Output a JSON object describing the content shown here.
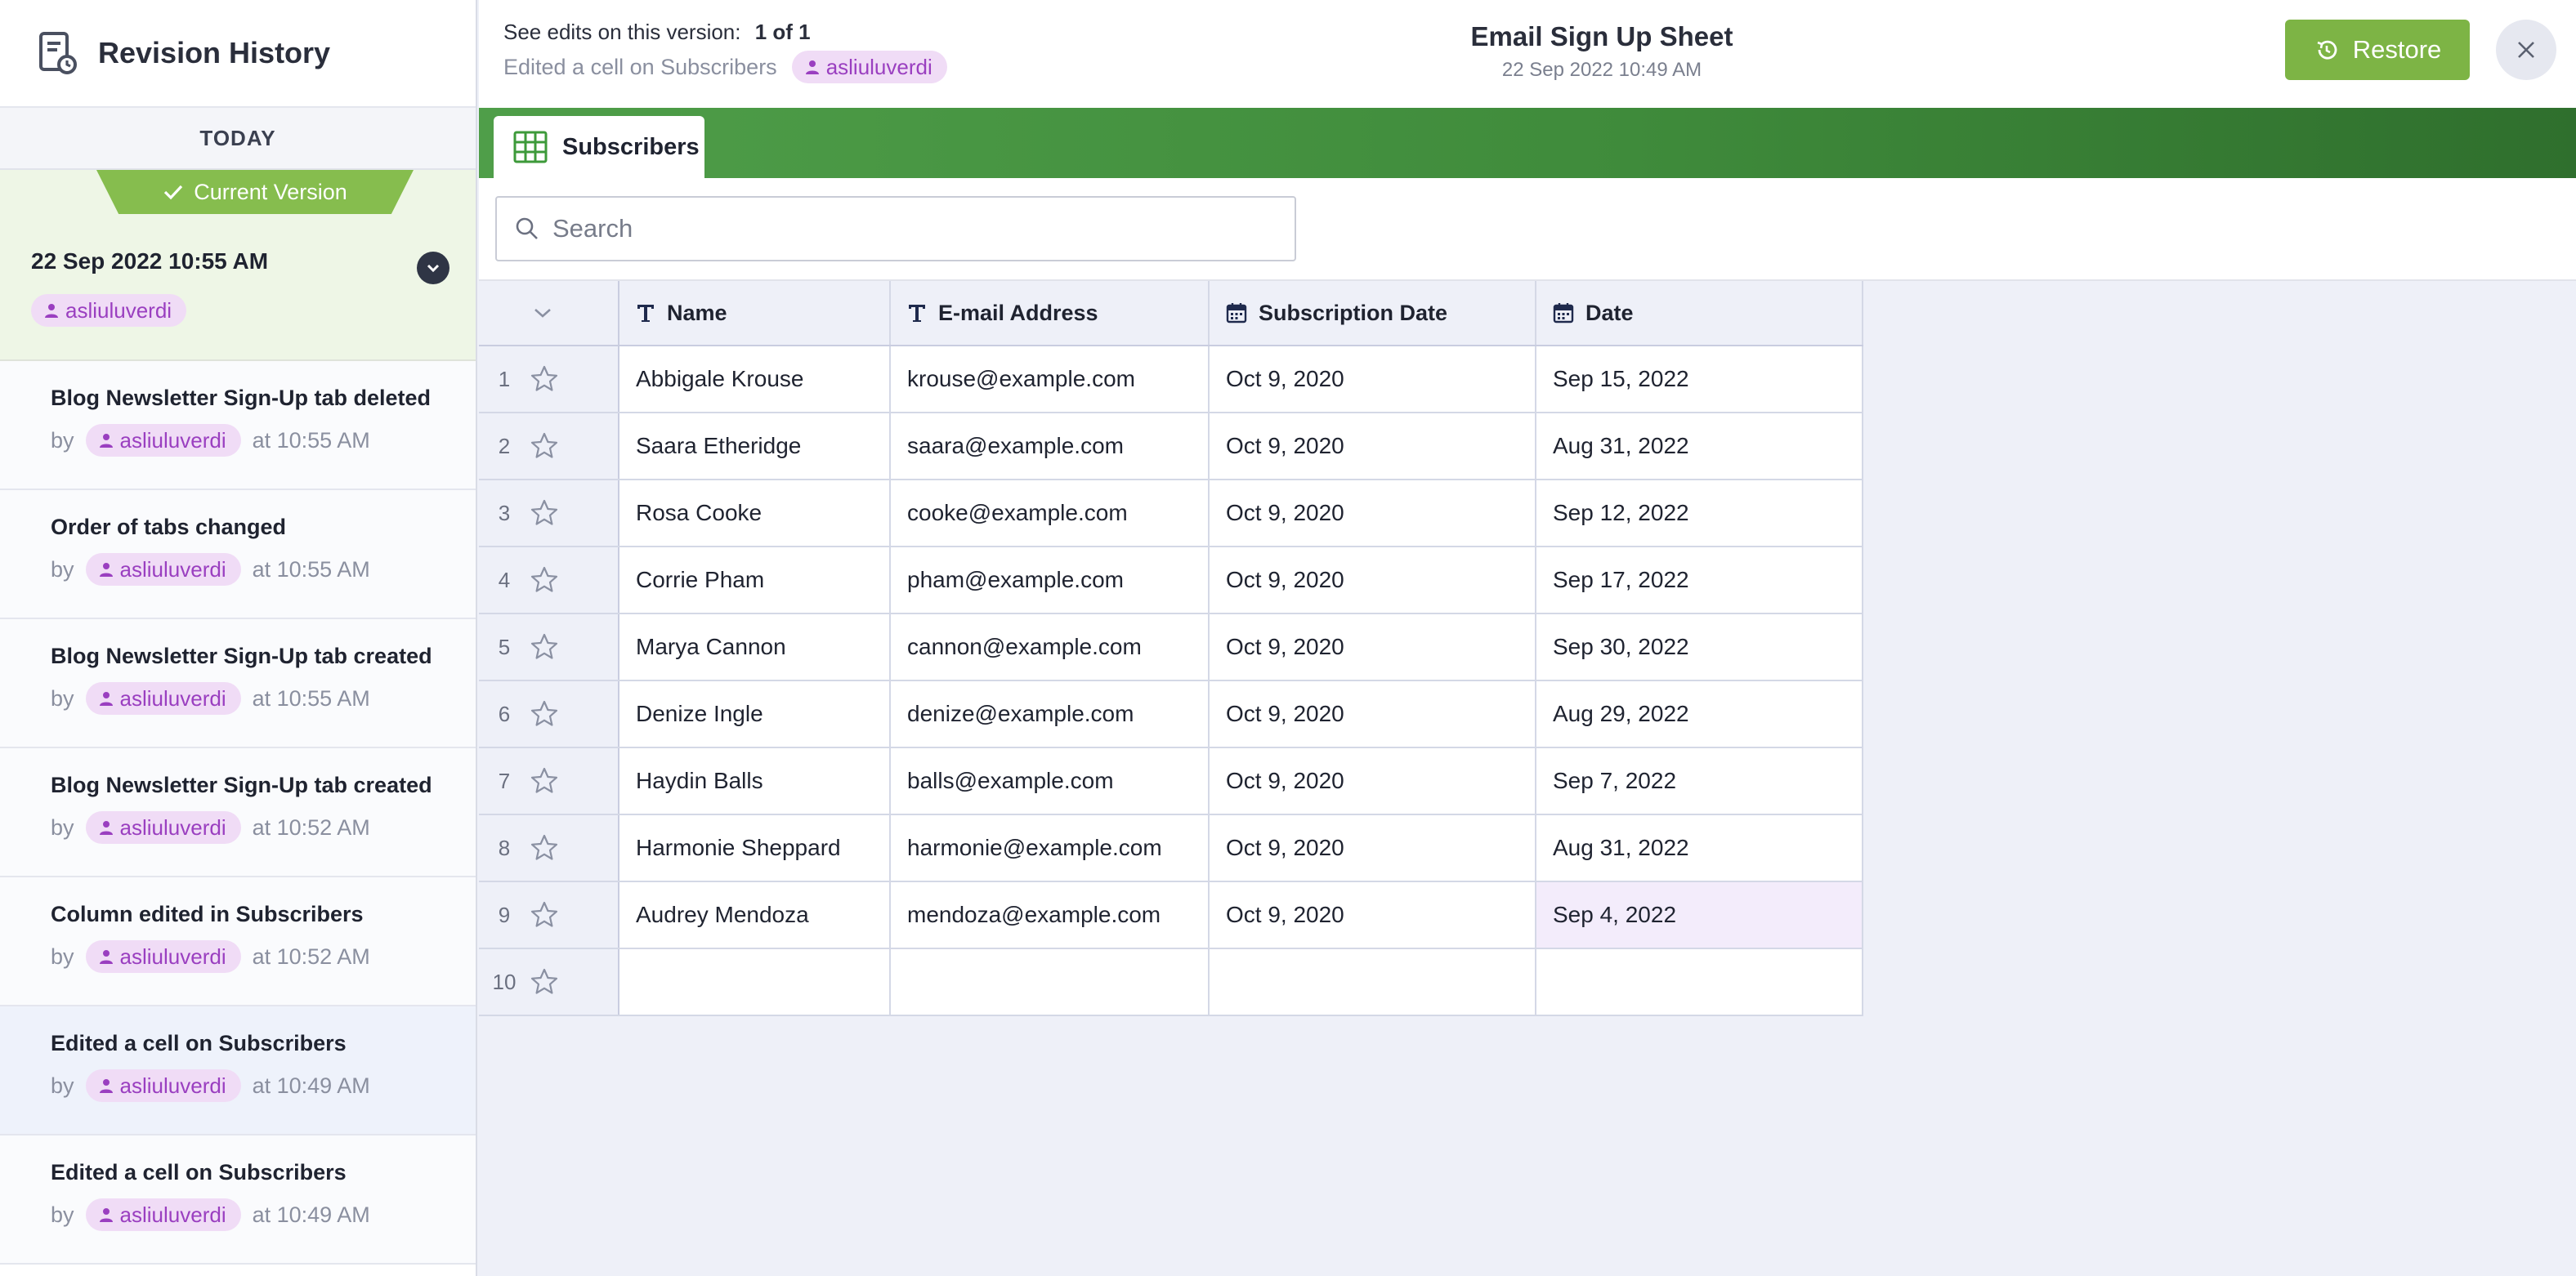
{
  "sidebar": {
    "title": "Revision History",
    "section": "TODAY",
    "current": {
      "badge": "Current Version",
      "date": "22 Sep 2022 10:55 AM",
      "user": "asliuluverdi"
    },
    "revisions": [
      {
        "title": "Blog Newsletter Sign-Up tab deleted",
        "by": "by",
        "user": "asliuluverdi",
        "time": "at 10:55 AM"
      },
      {
        "title": "Order of tabs changed",
        "by": "by",
        "user": "asliuluverdi",
        "time": "at 10:55 AM"
      },
      {
        "title": "Blog Newsletter Sign-Up tab created",
        "by": "by",
        "user": "asliuluverdi",
        "time": "at 10:55 AM"
      },
      {
        "title": "Blog Newsletter Sign-Up tab created",
        "by": "by",
        "user": "asliuluverdi",
        "time": "at 10:52 AM"
      },
      {
        "title": "Column edited in Subscribers",
        "by": "by",
        "user": "asliuluverdi",
        "time": "at 10:52 AM"
      },
      {
        "title": "Edited a cell on Subscribers",
        "by": "by",
        "user": "asliuluverdi",
        "time": "at 10:49 AM"
      },
      {
        "title": "Edited a cell on Subscribers",
        "by": "by",
        "user": "asliuluverdi",
        "time": "at 10:49 AM"
      }
    ]
  },
  "topbar": {
    "see_edits_label": "See edits on this version:",
    "see_edits_count": "1 of 1",
    "edited_text": "Edited a cell on Subscribers",
    "edited_user": "asliuluverdi",
    "doc_title": "Email Sign Up Sheet",
    "doc_date": "22 Sep 2022 10:49 AM",
    "restore_label": "Restore"
  },
  "tab": {
    "label": "Subscribers"
  },
  "search": {
    "placeholder": "Search",
    "value": ""
  },
  "table": {
    "headers": {
      "name": "Name",
      "email": "E-mail Address",
      "sub": "Subscription Date",
      "date": "Date"
    },
    "rows": [
      {
        "n": "1",
        "name": "Abbigale Krouse",
        "email": "krouse@example.com",
        "sub": "Oct 9, 2020",
        "date": "Sep 15, 2022"
      },
      {
        "n": "2",
        "name": "Saara Etheridge",
        "email": "saara@example.com",
        "sub": "Oct 9, 2020",
        "date": "Aug 31, 2022"
      },
      {
        "n": "3",
        "name": "Rosa Cooke",
        "email": "cooke@example.com",
        "sub": "Oct 9, 2020",
        "date": "Sep 12, 2022"
      },
      {
        "n": "4",
        "name": "Corrie Pham",
        "email": "pham@example.com",
        "sub": "Oct 9, 2020",
        "date": "Sep 17, 2022"
      },
      {
        "n": "5",
        "name": "Marya Cannon",
        "email": "cannon@example.com",
        "sub": "Oct 9, 2020",
        "date": "Sep 30, 2022"
      },
      {
        "n": "6",
        "name": "Denize Ingle",
        "email": "denize@example.com",
        "sub": "Oct 9, 2020",
        "date": "Aug 29, 2022"
      },
      {
        "n": "7",
        "name": "Haydin Balls",
        "email": "balls@example.com",
        "sub": "Oct 9, 2020",
        "date": "Sep 7, 2022"
      },
      {
        "n": "8",
        "name": "Harmonie Sheppard",
        "email": "harmonie@example.com",
        "sub": "Oct 9, 2020",
        "date": "Aug 31, 2022"
      },
      {
        "n": "9",
        "name": "Audrey Mendoza",
        "email": "mendoza@example.com",
        "sub": "Oct 9, 2020",
        "date": "Sep 4, 2022"
      },
      {
        "n": "10",
        "name": "",
        "email": "",
        "sub": "",
        "date": ""
      }
    ]
  },
  "colors": {
    "accent_green": "#7db445",
    "tab_strip_green": "#3f8b3b",
    "user_pill_bg": "#f0dcf6",
    "user_pill_text": "#9a3fc0",
    "highlight_cell": "#f3ecfb"
  }
}
